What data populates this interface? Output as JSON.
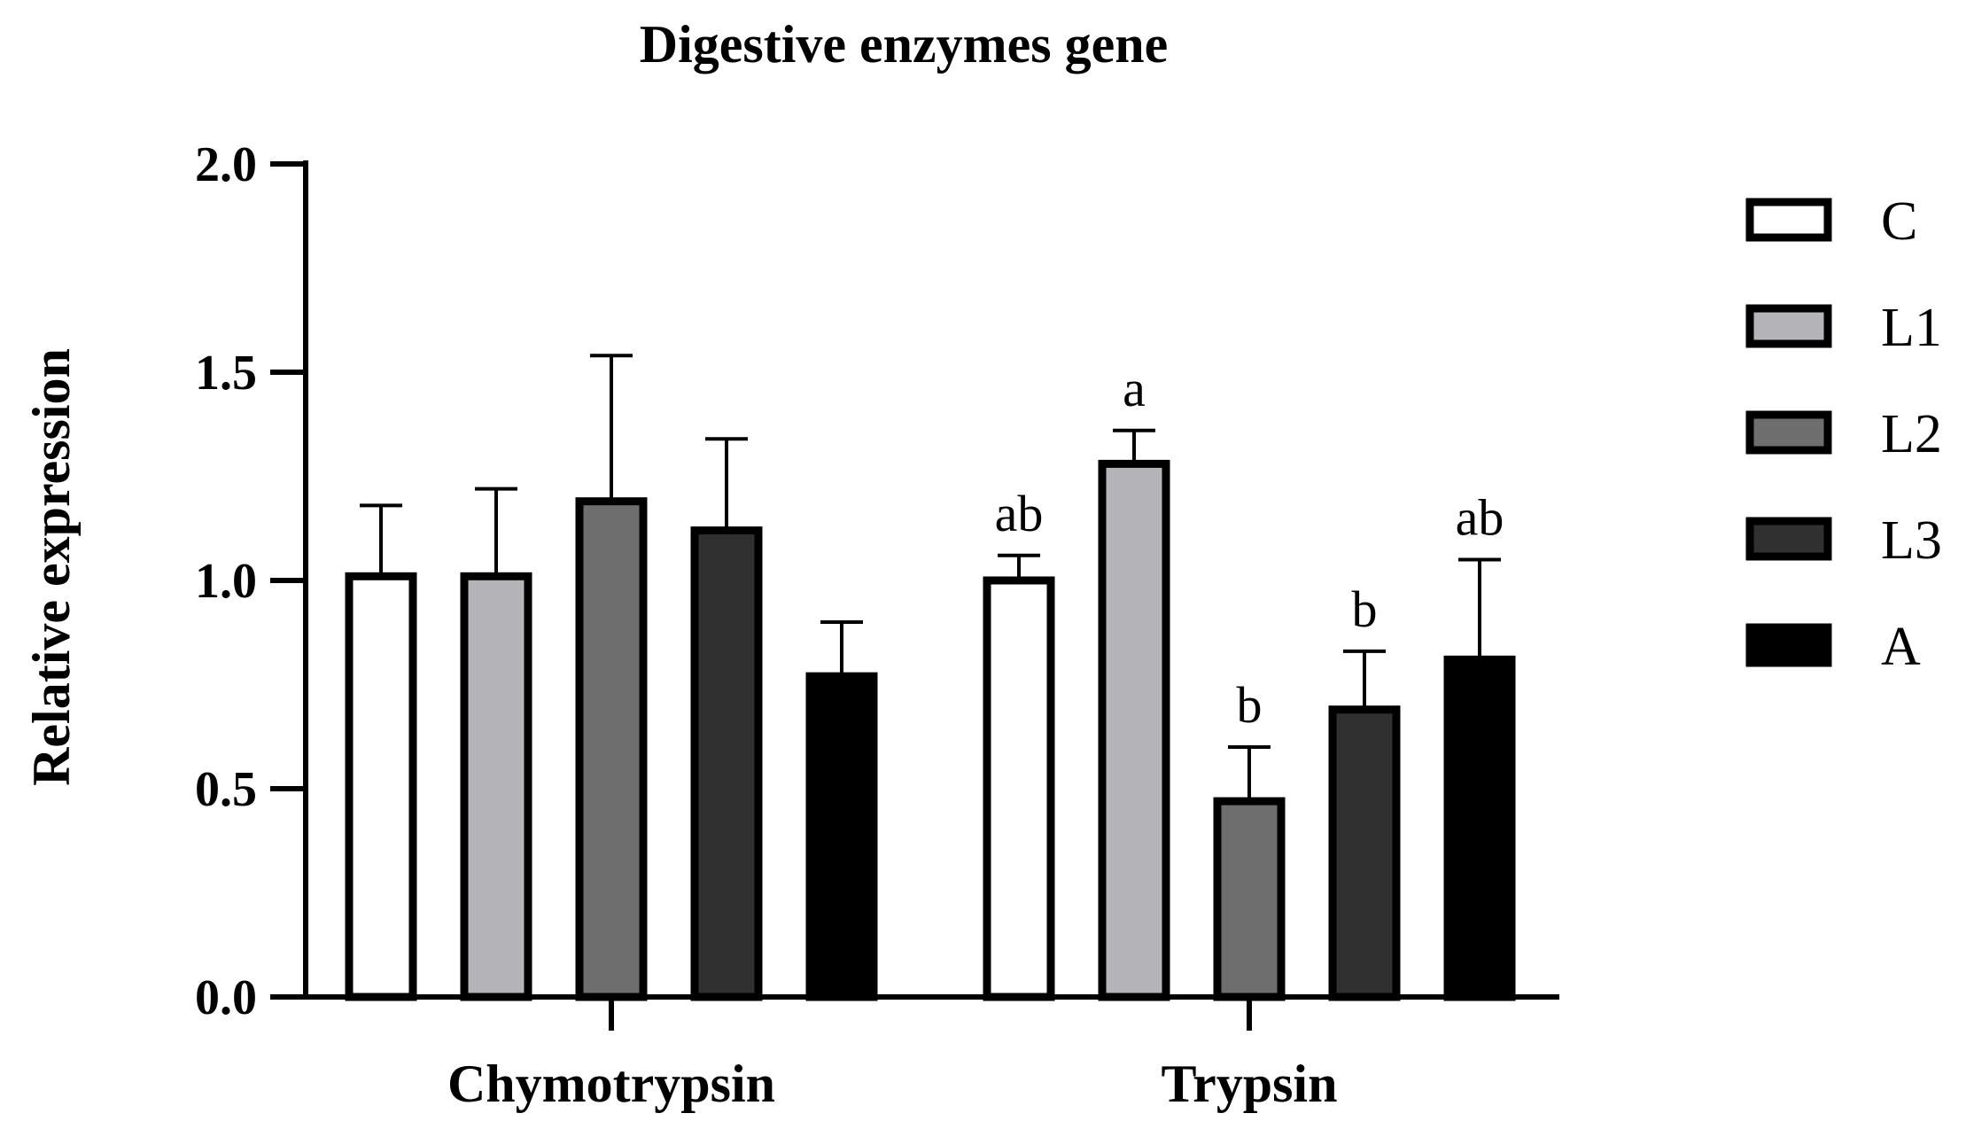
{
  "chart_data": {
    "type": "bar",
    "title": "Digestive enzymes gene",
    "xlabel": "",
    "ylabel": "Relative expression",
    "ylim": [
      0,
      2.0
    ],
    "yticks": [
      0.0,
      0.5,
      1.0,
      1.5,
      2.0
    ],
    "ytick_labels": [
      "0.0",
      "0.5",
      "1.0",
      "1.5",
      "2.0"
    ],
    "categories": [
      "Chymotrypsin",
      "Trypsin"
    ],
    "legend_position": "right",
    "grid": false,
    "series": [
      {
        "name": "C",
        "color": "#ffffff",
        "values": [
          1.01,
          1.0
        ],
        "errors": [
          0.17,
          0.06
        ],
        "labels": [
          "",
          "ab"
        ]
      },
      {
        "name": "L1",
        "color": "#b3b3b8",
        "values": [
          1.01,
          1.28
        ],
        "errors": [
          0.21,
          0.08
        ],
        "labels": [
          "",
          "a"
        ]
      },
      {
        "name": "L2",
        "color": "#6e6e6e",
        "values": [
          1.19,
          0.47
        ],
        "errors": [
          0.35,
          0.13
        ],
        "labels": [
          "",
          "b"
        ]
      },
      {
        "name": "L3",
        "color": "#303030",
        "values": [
          1.12,
          0.69
        ],
        "errors": [
          0.22,
          0.14
        ],
        "labels": [
          "",
          "b"
        ]
      },
      {
        "name": "A",
        "color": "#000000",
        "values": [
          0.77,
          0.81
        ],
        "errors": [
          0.13,
          0.24
        ],
        "labels": [
          "",
          "ab"
        ]
      }
    ]
  }
}
